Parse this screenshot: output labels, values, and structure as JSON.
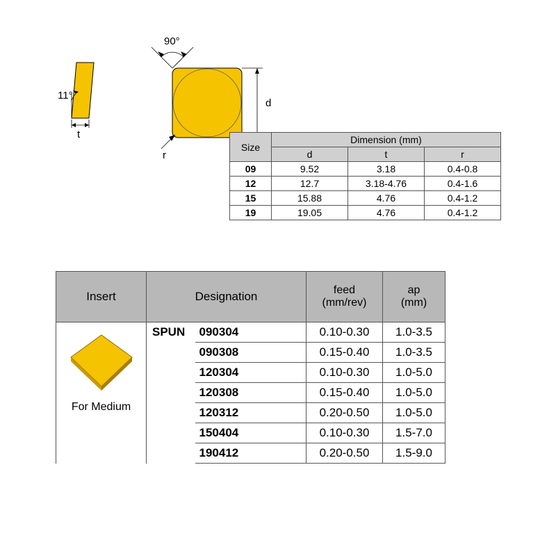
{
  "diagram": {
    "angle_90": "90°",
    "angle_11": "11°",
    "label_t": "t",
    "label_r": "r",
    "label_d": "d",
    "insert_fill": "#f5c300",
    "insert_stroke": "#000000",
    "circle_stroke": "#5a5a5a"
  },
  "size_table": {
    "header_size": "Size",
    "header_dim": "Dimension (mm)",
    "cols": {
      "d": "d",
      "t": "t",
      "r": "r"
    },
    "rows": [
      {
        "size": "09",
        "d": "9.52",
        "t": "3.18",
        "r": "0.4-0.8"
      },
      {
        "size": "12",
        "d": "12.7",
        "t": "3.18-4.76",
        "r": "0.4-1.6"
      },
      {
        "size": "15",
        "d": "15.88",
        "t": "4.76",
        "r": "0.4-1.2"
      },
      {
        "size": "19",
        "d": "19.05",
        "t": "4.76",
        "r": "0.4-1.2"
      }
    ],
    "header_bg": "#d0d0d0",
    "border_color": "#555555"
  },
  "main_table": {
    "headers": {
      "insert": "Insert",
      "designation": "Designation",
      "feed": "feed",
      "feed_unit": "(mm/rev)",
      "ap": "ap",
      "ap_unit": "(mm)"
    },
    "series": "SPUN",
    "insert_caption": "For Medium",
    "rows": [
      {
        "code": "090304",
        "feed": "0.10-0.30",
        "ap": "1.0-3.5"
      },
      {
        "code": "090308",
        "feed": "0.15-0.40",
        "ap": "1.0-3.5"
      },
      {
        "code": "120304",
        "feed": "0.10-0.30",
        "ap": "1.0-5.0"
      },
      {
        "code": "120308",
        "feed": "0.15-0.40",
        "ap": "1.0-5.0"
      },
      {
        "code": "120312",
        "feed": "0.20-0.50",
        "ap": "1.0-5.0"
      },
      {
        "code": "150404",
        "feed": "0.10-0.30",
        "ap": "1.5-7.0"
      },
      {
        "code": "190412",
        "feed": "0.20-0.50",
        "ap": "1.5-9.0"
      }
    ],
    "header_bg": "#b8b8b8",
    "iso_fill": "#f5c300",
    "iso_stroke": "#8a6b00"
  }
}
